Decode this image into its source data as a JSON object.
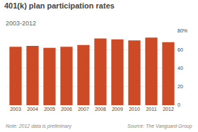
{
  "chart_data": {
    "type": "bar",
    "title": "401(k) plan participation rates",
    "subtitle": "2003-2012",
    "categories": [
      "2003",
      "2004",
      "2005",
      "2006",
      "2007",
      "2008",
      "2009",
      "2010",
      "2011",
      "2012"
    ],
    "values": [
      63,
      64,
      62,
      63,
      65,
      72,
      71,
      70,
      73,
      68
    ],
    "color": "#cc4a25",
    "ylim": [
      0,
      80
    ],
    "yticks": [
      0,
      20,
      40,
      60,
      {
        "value": 80,
        "label": "80%"
      }
    ],
    "grid": true,
    "annotations": [
      "Note: 2012 data is preliminary",
      "Source: The Vanguard Group"
    ]
  }
}
